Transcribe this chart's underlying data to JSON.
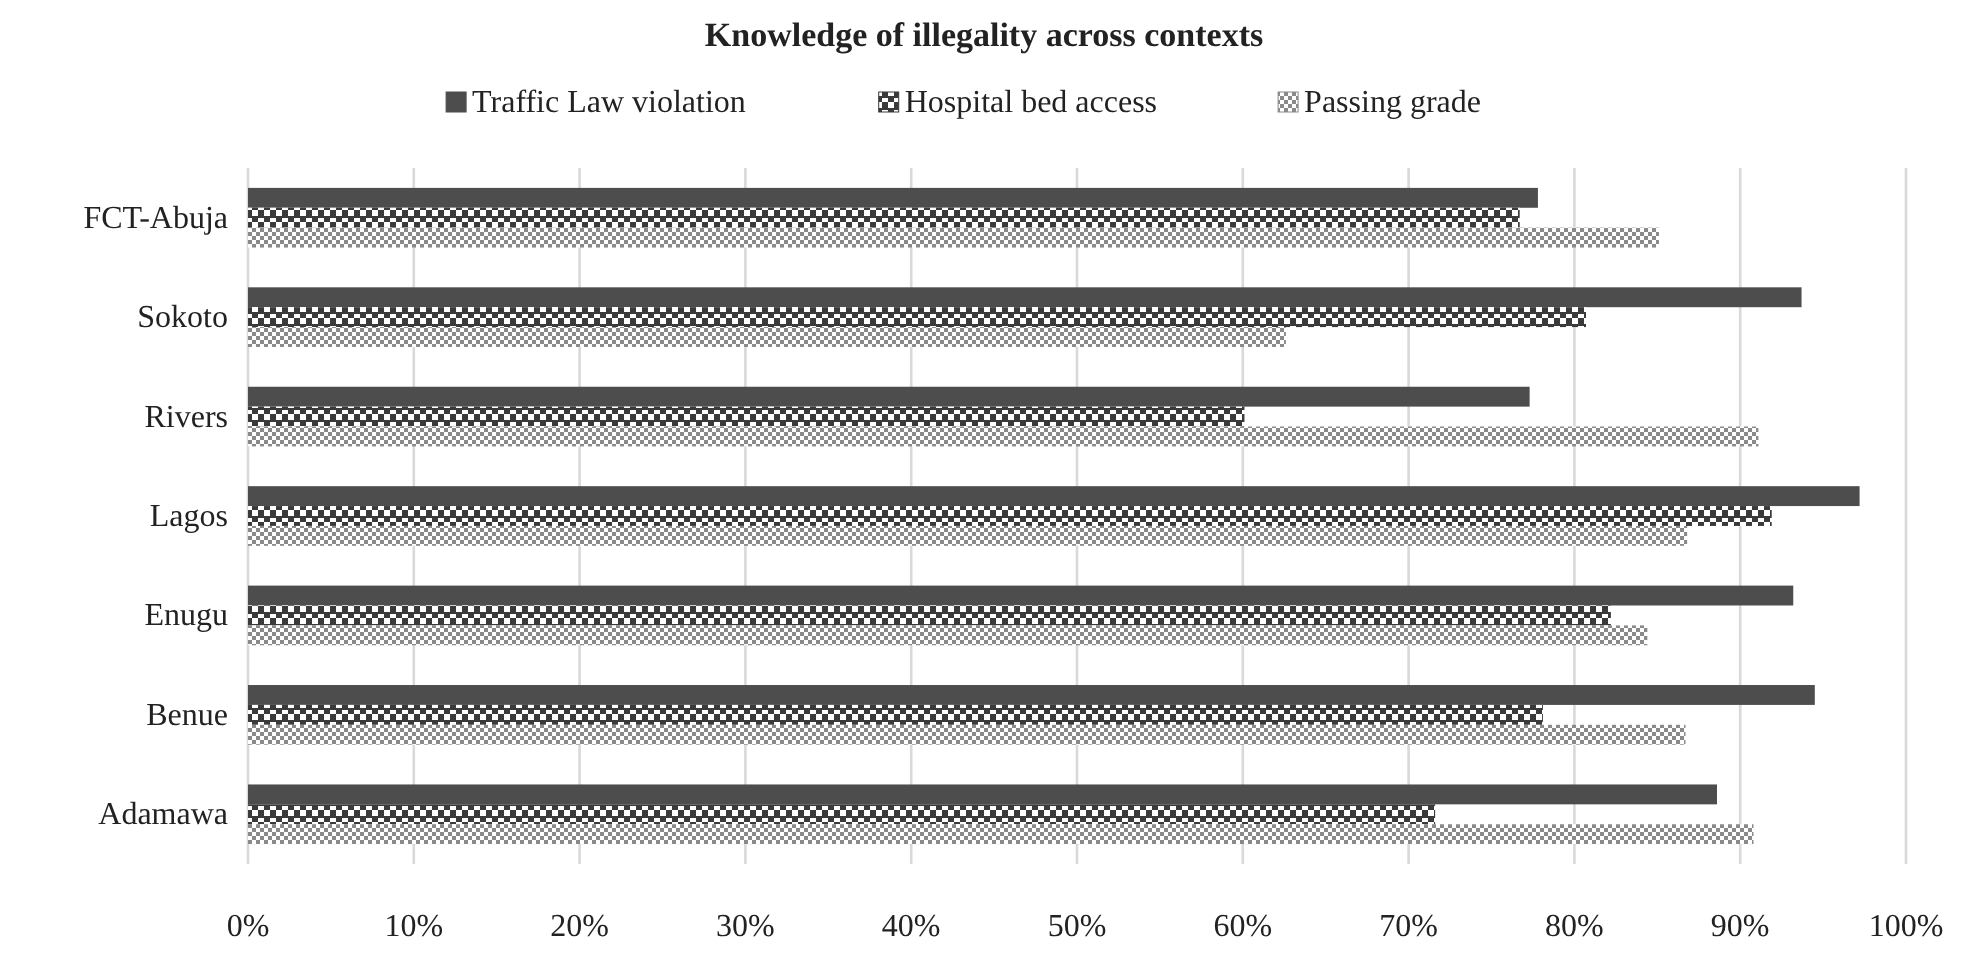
{
  "chart_data": {
    "type": "bar",
    "orientation": "horizontal",
    "title": "Knowledge of illegality across contexts",
    "categories": [
      "FCT-Abuja",
      "Sokoto",
      "Rivers",
      "Lagos",
      "Enugu",
      "Benue",
      "Adamawa"
    ],
    "series": [
      {
        "name": "Traffic Law violation",
        "color": "#4d4d4d",
        "values": [
          77.8,
          93.7,
          77.3,
          97.2,
          93.2,
          94.5,
          88.6
        ]
      },
      {
        "name": "Hospital bed access",
        "color": "#3a3a3a",
        "values": [
          76.7,
          80.7,
          60.1,
          91.9,
          82.2,
          78.1,
          71.6
        ]
      },
      {
        "name": "Passing grade",
        "color": "#8a8a8a",
        "values": [
          85.1,
          62.6,
          91.1,
          86.8,
          84.4,
          86.7,
          90.8
        ]
      }
    ],
    "xlim": [
      0,
      100
    ],
    "xticks": [
      {
        "value": 0,
        "label": "0%"
      },
      {
        "value": 10,
        "label": "10%"
      },
      {
        "value": 20,
        "label": "20%"
      },
      {
        "value": 30,
        "label": "30%"
      },
      {
        "value": 40,
        "label": "40%"
      },
      {
        "value": 50,
        "label": "50%"
      },
      {
        "value": 60,
        "label": "60%"
      },
      {
        "value": 70,
        "label": "70%"
      },
      {
        "value": 80,
        "label": "80%"
      },
      {
        "value": 90,
        "label": "90%"
      },
      {
        "value": 100,
        "label": "100%"
      }
    ],
    "grid": "x",
    "legend": "top"
  }
}
